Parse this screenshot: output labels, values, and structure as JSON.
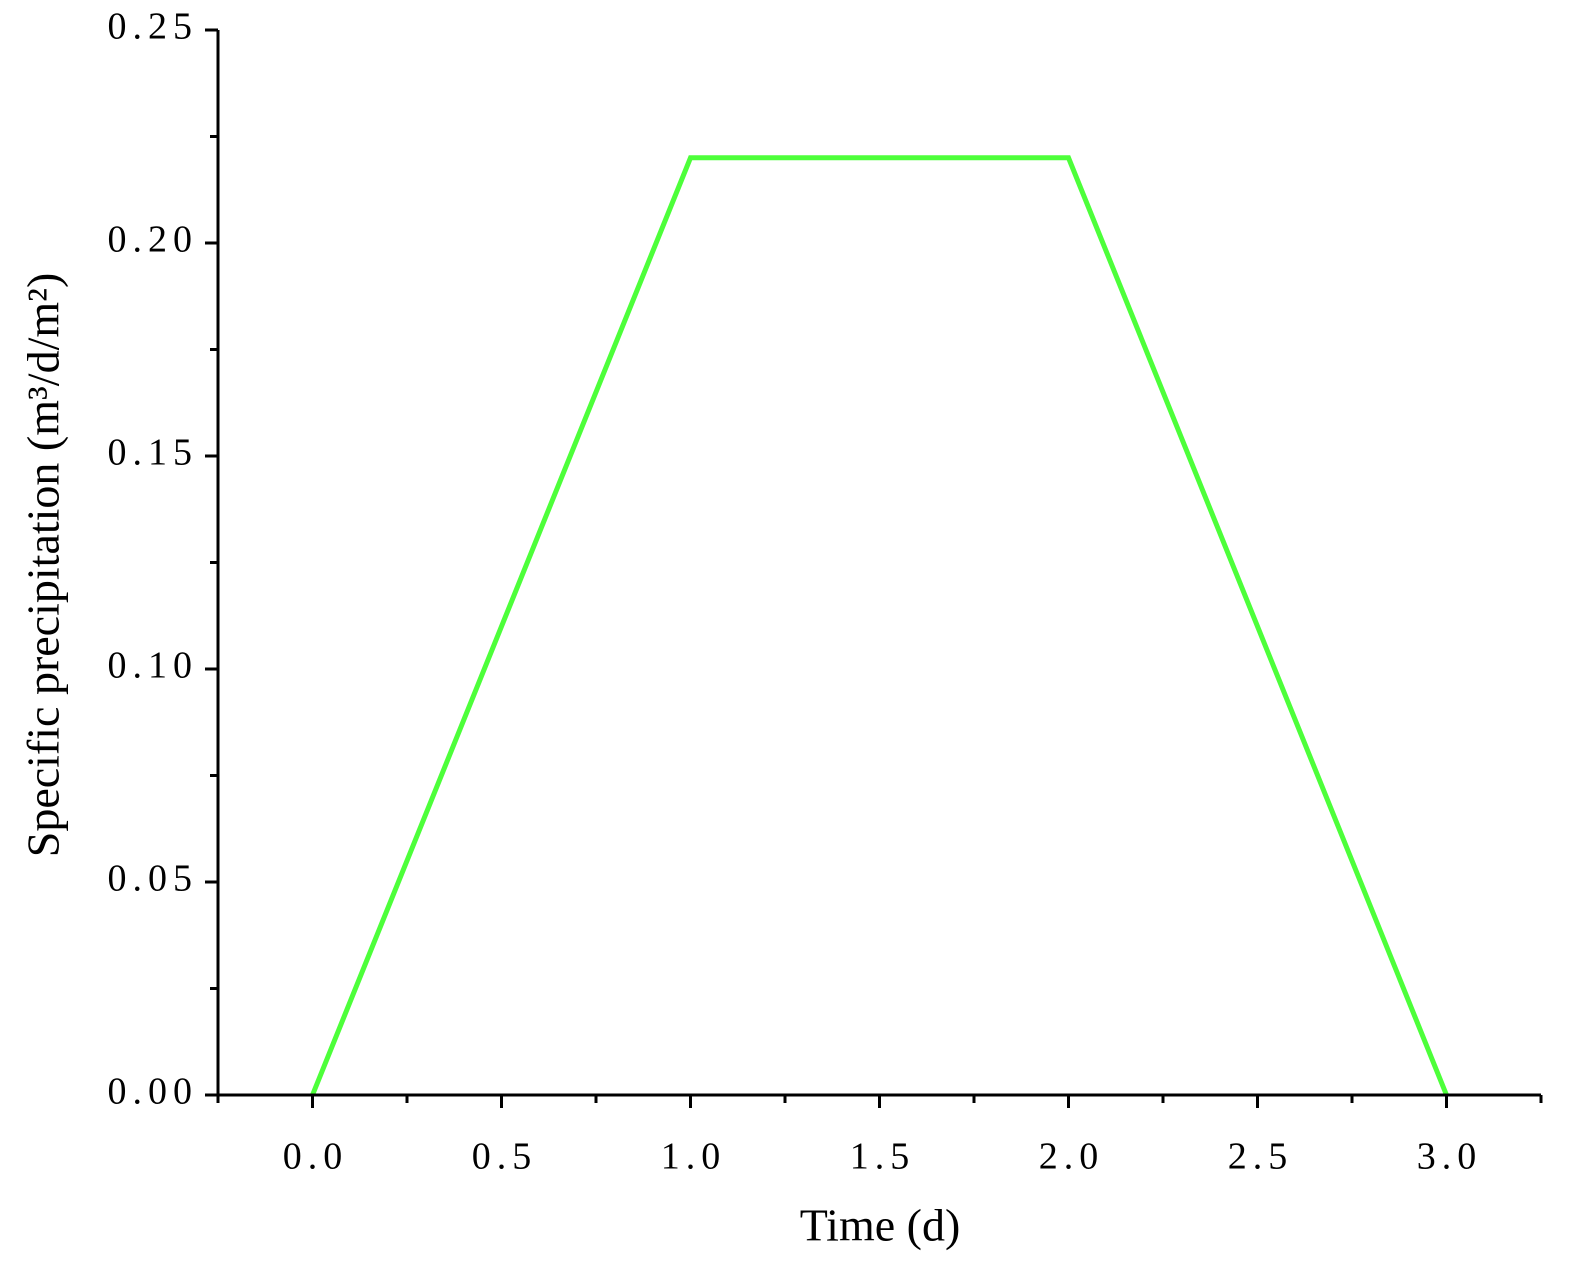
{
  "chart_data": {
    "type": "line",
    "xlabel": "Time (d)",
    "ylabel": "Specific precipitation (m³/d/m²)",
    "x": [
      0,
      1,
      2,
      3
    ],
    "series": [
      {
        "color": "#4dff3a",
        "values": [
          0,
          0.22,
          0.22,
          0
        ]
      }
    ],
    "xlim": [
      -0.25,
      3.25
    ],
    "ylim": [
      0,
      0.25
    ],
    "xticks": [
      {
        "value": 0,
        "label": "0.0"
      },
      0.5,
      {
        "value": 1,
        "label": "1.0"
      },
      1.5,
      {
        "value": 2,
        "label": "2.0"
      },
      2.5,
      {
        "value": 3,
        "label": "3.0"
      }
    ],
    "yticks": [
      {
        "value": 0,
        "label": "0.00"
      },
      0.05,
      {
        "value": 0.1,
        "label": "0.10"
      },
      0.15,
      {
        "value": 0.2,
        "label": "0.20"
      },
      0.25
    ],
    "xminorticks": [
      -0.25,
      0.25,
      0.75,
      1.25,
      1.75,
      2.25,
      2.75,
      3.25
    ],
    "yminorticks": [
      0.025,
      0.075,
      0.125,
      0.175,
      0.225
    ],
    "grid": false
  }
}
